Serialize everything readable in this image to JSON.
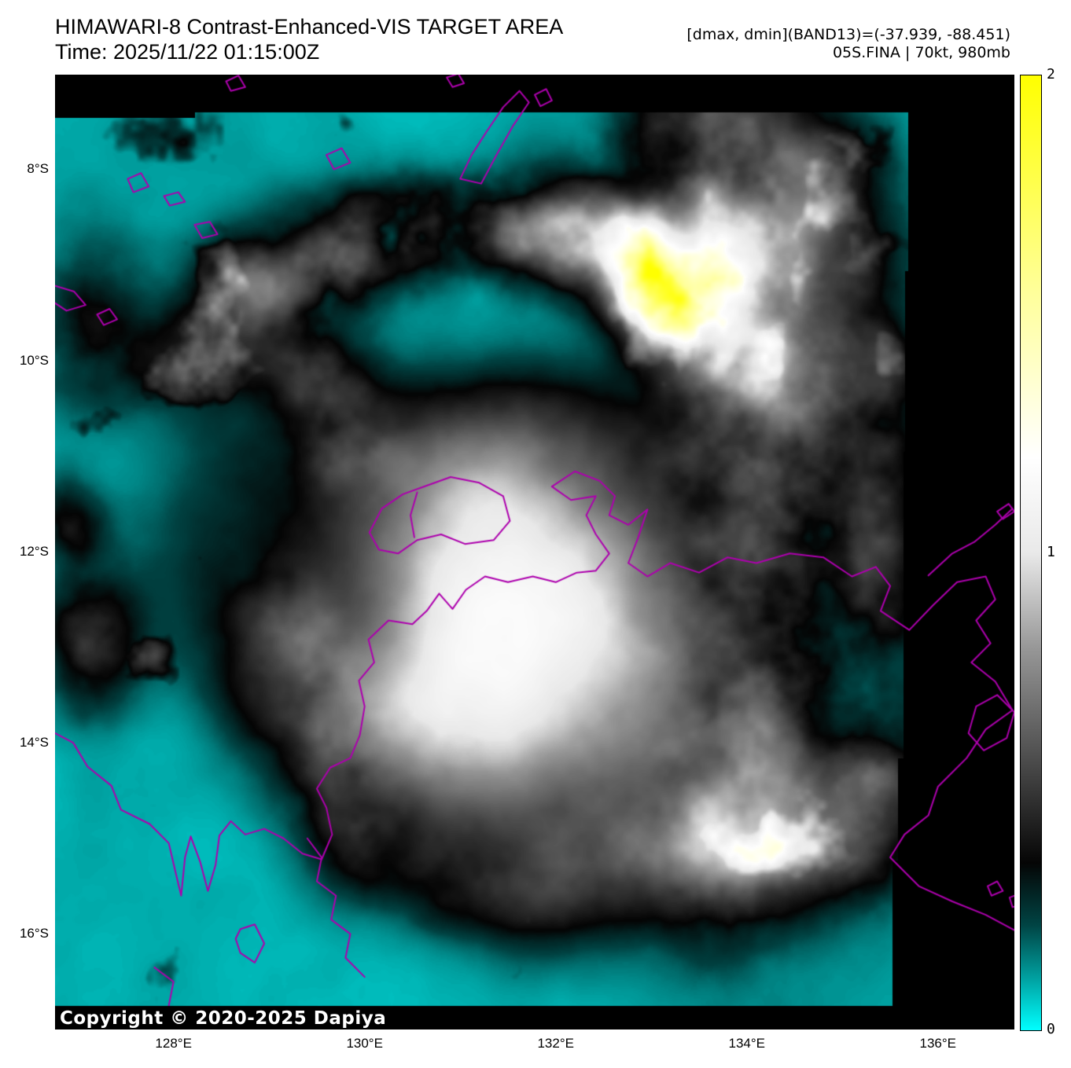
{
  "header": {
    "title": "HIMAWARI-8 Contrast-Enhanced-VIS TARGET AREA",
    "time_label": "Time: 2025/11/22 01:15:00Z",
    "band_stats": "[dmax, dmin](BAND13)=(-37.939, -88.451)",
    "storm_info": "05S.FINA | 70kt, 980mb"
  },
  "axes": {
    "x_ticks": [
      {
        "label": "128°E",
        "lon": 128
      },
      {
        "label": "130°E",
        "lon": 130
      },
      {
        "label": "132°E",
        "lon": 132
      },
      {
        "label": "134°E",
        "lon": 134
      },
      {
        "label": "136°E",
        "lon": 136
      }
    ],
    "y_ticks": [
      {
        "label": "8°S",
        "lat": -8
      },
      {
        "label": "10°S",
        "lat": -10
      },
      {
        "label": "12°S",
        "lat": -12
      },
      {
        "label": "14°S",
        "lat": -14
      },
      {
        "label": "16°S",
        "lat": -16
      }
    ]
  },
  "colorbar": {
    "min": 0,
    "max": 2,
    "ticks": [
      {
        "label": "2",
        "value": 2
      },
      {
        "label": "1",
        "value": 1
      },
      {
        "label": "0",
        "value": 0
      }
    ]
  },
  "map": {
    "copyright": "Copyright © 2020-2025 Dapiya",
    "coastline_color": "#ad00ad",
    "ocean_color": "#00e5e5",
    "view": {
      "lon_min": 126.76,
      "lon_max": 136.8,
      "lat_min": -17.0,
      "lat_max": -7.01
    },
    "colormap": [
      {
        "v": 0.0,
        "c": "#00ffff"
      },
      {
        "v": 0.1,
        "c": "#00a8a8"
      },
      {
        "v": 0.22,
        "c": "#004444"
      },
      {
        "v": 0.35,
        "c": "#050505"
      },
      {
        "v": 0.55,
        "c": "#474747"
      },
      {
        "v": 0.8,
        "c": "#979797"
      },
      {
        "v": 1.0,
        "c": "#e9e9e9"
      },
      {
        "v": 1.2,
        "c": "#ffffff"
      },
      {
        "v": 1.55,
        "c": "#ffff99"
      },
      {
        "v": 2.0,
        "c": "#ffff00"
      }
    ],
    "cyclone": {
      "u": 0.467,
      "v": 0.586,
      "core_radius": 0.21,
      "amp": 1.28,
      "arm_r": 0.27,
      "arm_width": 0.05,
      "arm_angle": 1.8,
      "arm_spread": 1.1,
      "arm_amp": 0.45
    },
    "cloud_blobs": [
      [
        0.245,
        0.215,
        0.075,
        0.05,
        0.95
      ],
      [
        0.34,
        0.17,
        0.08,
        0.05,
        1.0
      ],
      [
        0.455,
        0.155,
        0.085,
        0.05,
        1.0
      ],
      [
        0.565,
        0.175,
        0.08,
        0.055,
        1.05
      ],
      [
        0.65,
        0.23,
        0.07,
        0.06,
        0.95
      ],
      [
        0.715,
        0.305,
        0.06,
        0.065,
        0.8
      ],
      [
        0.68,
        0.18,
        0.08,
        0.07,
        0.7
      ],
      [
        0.73,
        0.4,
        0.1,
        0.09,
        0.7
      ],
      [
        0.755,
        0.54,
        0.09,
        0.11,
        0.68
      ],
      [
        0.74,
        0.7,
        0.085,
        0.1,
        0.65
      ],
      [
        0.705,
        0.83,
        0.08,
        0.09,
        0.6
      ],
      [
        0.72,
        0.1,
        0.12,
        0.08,
        0.6
      ],
      [
        0.78,
        0.22,
        0.1,
        0.1,
        0.55
      ],
      [
        0.68,
        0.05,
        0.1,
        0.05,
        0.5
      ],
      [
        0.84,
        0.33,
        0.07,
        0.08,
        0.45
      ],
      [
        0.86,
        0.5,
        0.04,
        0.12,
        0.45
      ],
      [
        0.86,
        0.75,
        0.04,
        0.1,
        0.4
      ],
      [
        0.275,
        0.315,
        0.05,
        0.05,
        0.5
      ],
      [
        0.305,
        0.375,
        0.05,
        0.06,
        0.55
      ],
      [
        0.035,
        0.59,
        0.05,
        0.075,
        0.55
      ],
      [
        0.015,
        0.465,
        0.035,
        0.045,
        0.4
      ],
      [
        0.24,
        0.575,
        0.045,
        0.06,
        0.4
      ],
      [
        0.275,
        0.665,
        0.04,
        0.075,
        0.42
      ],
      [
        0.305,
        0.76,
        0.045,
        0.075,
        0.4
      ],
      [
        0.07,
        0.3,
        0.11,
        0.055,
        0.25
      ],
      [
        0.18,
        0.27,
        0.09,
        0.05,
        0.22
      ],
      [
        0.03,
        0.23,
        0.06,
        0.08,
        0.28
      ],
      [
        0.8,
        0.815,
        0.1,
        0.06,
        0.35
      ],
      [
        0.885,
        0.735,
        0.07,
        0.06,
        0.32
      ]
    ],
    "coastlines": [
      {
        "name": "australia-mainland",
        "pts": [
          [
            126.76,
            -13.9
          ],
          [
            126.95,
            -14.0
          ],
          [
            127.1,
            -14.25
          ],
          [
            127.35,
            -14.45
          ],
          [
            127.45,
            -14.7
          ],
          [
            127.75,
            -14.85
          ],
          [
            127.95,
            -15.05
          ],
          [
            128.02,
            -15.35
          ],
          [
            128.08,
            -15.6
          ],
          [
            128.12,
            -15.2
          ],
          [
            128.18,
            -14.98
          ],
          [
            128.28,
            -15.25
          ],
          [
            128.36,
            -15.55
          ],
          [
            128.44,
            -15.28
          ],
          [
            128.48,
            -14.97
          ],
          [
            128.6,
            -14.82
          ],
          [
            128.75,
            -14.96
          ],
          [
            128.95,
            -14.9
          ],
          [
            129.15,
            -15.0
          ],
          [
            129.35,
            -15.16
          ],
          [
            129.55,
            -15.22
          ],
          [
            129.66,
            -14.96
          ],
          [
            129.6,
            -14.68
          ],
          [
            129.5,
            -14.48
          ],
          [
            129.64,
            -14.26
          ],
          [
            129.85,
            -14.16
          ],
          [
            129.95,
            -13.92
          ],
          [
            130.0,
            -13.62
          ],
          [
            129.94,
            -13.35
          ],
          [
            130.1,
            -13.16
          ],
          [
            130.04,
            -12.92
          ],
          [
            130.25,
            -12.72
          ],
          [
            130.5,
            -12.76
          ],
          [
            130.65,
            -12.62
          ],
          [
            130.78,
            -12.44
          ],
          [
            130.92,
            -12.6
          ],
          [
            131.06,
            -12.4
          ],
          [
            131.26,
            -12.26
          ],
          [
            131.5,
            -12.32
          ],
          [
            131.76,
            -12.26
          ],
          [
            132.0,
            -12.32
          ],
          [
            132.22,
            -12.22
          ],
          [
            132.42,
            -12.2
          ],
          [
            132.56,
            -12.02
          ],
          [
            132.42,
            -11.82
          ],
          [
            132.32,
            -11.62
          ],
          [
            132.42,
            -11.42
          ],
          [
            132.16,
            -11.46
          ],
          [
            131.96,
            -11.32
          ],
          [
            132.2,
            -11.16
          ],
          [
            132.46,
            -11.26
          ],
          [
            132.62,
            -11.42
          ],
          [
            132.56,
            -11.62
          ],
          [
            132.76,
            -11.72
          ],
          [
            132.96,
            -11.56
          ],
          [
            132.86,
            -11.86
          ],
          [
            132.76,
            -12.12
          ],
          [
            132.96,
            -12.26
          ],
          [
            133.2,
            -12.12
          ],
          [
            133.5,
            -12.22
          ],
          [
            133.8,
            -12.06
          ],
          [
            134.1,
            -12.12
          ],
          [
            134.45,
            -12.02
          ],
          [
            134.8,
            -12.06
          ],
          [
            135.1,
            -12.26
          ],
          [
            135.35,
            -12.16
          ],
          [
            135.5,
            -12.36
          ],
          [
            135.4,
            -12.62
          ],
          [
            135.7,
            -12.82
          ],
          [
            135.95,
            -12.56
          ],
          [
            136.2,
            -12.32
          ],
          [
            136.5,
            -12.26
          ],
          [
            136.6,
            -12.5
          ],
          [
            136.4,
            -12.72
          ],
          [
            136.55,
            -12.96
          ],
          [
            136.35,
            -13.16
          ],
          [
            136.6,
            -13.36
          ],
          [
            136.78,
            -13.66
          ],
          [
            136.5,
            -13.86
          ],
          [
            136.3,
            -14.16
          ],
          [
            136.0,
            -14.46
          ],
          [
            135.9,
            -14.76
          ],
          [
            135.65,
            -14.96
          ],
          [
            135.5,
            -15.2
          ],
          [
            135.8,
            -15.5
          ],
          [
            136.15,
            -15.66
          ],
          [
            136.5,
            -15.8
          ],
          [
            136.8,
            -15.96
          ]
        ]
      },
      {
        "name": "tiwi-islands",
        "pts": [
          [
            130.05,
            -11.8
          ],
          [
            130.18,
            -11.55
          ],
          [
            130.4,
            -11.4
          ],
          [
            130.62,
            -11.32
          ],
          [
            130.9,
            -11.22
          ],
          [
            131.2,
            -11.28
          ],
          [
            131.45,
            -11.42
          ],
          [
            131.52,
            -11.68
          ],
          [
            131.35,
            -11.88
          ],
          [
            131.05,
            -11.92
          ],
          [
            130.8,
            -11.82
          ],
          [
            130.55,
            -11.88
          ],
          [
            130.35,
            -12.02
          ],
          [
            130.15,
            -11.98
          ],
          [
            130.05,
            -11.8
          ]
        ]
      },
      {
        "name": "apsley-strait",
        "pts": [
          [
            130.55,
            -11.38
          ],
          [
            130.48,
            -11.62
          ],
          [
            130.52,
            -11.85
          ]
        ]
      },
      {
        "name": "tanimbar-islands",
        "pts": [
          [
            131.0,
            -8.1
          ],
          [
            131.12,
            -7.85
          ],
          [
            131.28,
            -7.6
          ],
          [
            131.45,
            -7.35
          ],
          [
            131.62,
            -7.18
          ],
          [
            131.72,
            -7.3
          ],
          [
            131.55,
            -7.55
          ],
          [
            131.38,
            -7.85
          ],
          [
            131.22,
            -8.15
          ],
          [
            131.0,
            -8.1
          ]
        ]
      },
      {
        "name": "tanimbar-islet",
        "pts": [
          [
            131.78,
            -7.22
          ],
          [
            131.9,
            -7.16
          ],
          [
            131.96,
            -7.28
          ],
          [
            131.84,
            -7.34
          ],
          [
            131.78,
            -7.22
          ]
        ]
      },
      {
        "name": "north-islet",
        "pts": [
          [
            130.86,
            -7.04
          ],
          [
            130.98,
            -7.0
          ],
          [
            131.04,
            -7.1
          ],
          [
            130.92,
            -7.14
          ],
          [
            130.86,
            -7.04
          ]
        ]
      },
      {
        "name": "damar-islet",
        "pts": [
          [
            128.55,
            -7.08
          ],
          [
            128.68,
            -7.02
          ],
          [
            128.75,
            -7.14
          ],
          [
            128.6,
            -7.18
          ],
          [
            128.55,
            -7.08
          ]
        ]
      },
      {
        "name": "babar-island",
        "pts": [
          [
            129.6,
            -7.85
          ],
          [
            129.76,
            -7.78
          ],
          [
            129.85,
            -7.93
          ],
          [
            129.68,
            -8.0
          ],
          [
            129.6,
            -7.85
          ]
        ]
      },
      {
        "name": "leti-island",
        "pts": [
          [
            126.76,
            -9.22
          ],
          [
            126.96,
            -9.28
          ],
          [
            127.08,
            -9.42
          ],
          [
            126.88,
            -9.48
          ],
          [
            126.76,
            -9.4
          ]
        ]
      },
      {
        "name": "moa-island",
        "pts": [
          [
            127.2,
            -9.52
          ],
          [
            127.33,
            -9.46
          ],
          [
            127.41,
            -9.57
          ],
          [
            127.27,
            -9.63
          ],
          [
            127.2,
            -9.52
          ]
        ]
      },
      {
        "name": "sermata-island",
        "pts": [
          [
            127.52,
            -8.1
          ],
          [
            127.66,
            -8.04
          ],
          [
            127.74,
            -8.18
          ],
          [
            127.58,
            -8.24
          ],
          [
            127.52,
            -8.1
          ]
        ]
      },
      {
        "name": "small-islet-a",
        "pts": [
          [
            127.9,
            -8.28
          ],
          [
            128.05,
            -8.24
          ],
          [
            128.12,
            -8.34
          ],
          [
            127.96,
            -8.38
          ],
          [
            127.9,
            -8.28
          ]
        ]
      },
      {
        "name": "small-islet-b",
        "pts": [
          [
            128.22,
            -8.58
          ],
          [
            128.38,
            -8.55
          ],
          [
            128.46,
            -8.68
          ],
          [
            128.3,
            -8.72
          ],
          [
            128.22,
            -8.58
          ]
        ]
      },
      {
        "name": "wessel-islands",
        "pts": [
          [
            136.78,
            -11.55
          ],
          [
            136.6,
            -11.72
          ],
          [
            136.38,
            -11.9
          ],
          [
            136.15,
            -12.02
          ],
          [
            135.9,
            -12.25
          ]
        ]
      },
      {
        "name": "wessel-islet",
        "pts": [
          [
            136.62,
            -11.58
          ],
          [
            136.74,
            -11.5
          ],
          [
            136.8,
            -11.58
          ],
          [
            136.68,
            -11.66
          ],
          [
            136.62,
            -11.58
          ]
        ]
      },
      {
        "name": "groote-eylandt",
        "pts": [
          [
            136.4,
            -13.62
          ],
          [
            136.62,
            -13.5
          ],
          [
            136.8,
            -13.68
          ],
          [
            136.72,
            -13.95
          ],
          [
            136.48,
            -14.08
          ],
          [
            136.32,
            -13.9
          ],
          [
            136.4,
            -13.62
          ]
        ]
      },
      {
        "name": "pellew-islet-a",
        "pts": [
          [
            136.52,
            -15.5
          ],
          [
            136.62,
            -15.45
          ],
          [
            136.68,
            -15.55
          ],
          [
            136.56,
            -15.6
          ],
          [
            136.52,
            -15.5
          ]
        ]
      },
      {
        "name": "pellew-islet-b",
        "pts": [
          [
            136.75,
            -15.62
          ],
          [
            136.85,
            -15.58
          ],
          [
            136.9,
            -15.68
          ],
          [
            136.78,
            -15.72
          ],
          [
            136.75,
            -15.62
          ]
        ]
      },
      {
        "name": "victoria-river",
        "pts": [
          [
            129.4,
            -15.0
          ],
          [
            129.55,
            -15.2
          ],
          [
            129.5,
            -15.45
          ],
          [
            129.7,
            -15.6
          ],
          [
            129.65,
            -15.85
          ],
          [
            129.85,
            -16.0
          ],
          [
            129.8,
            -16.25
          ],
          [
            130.0,
            -16.45
          ]
        ]
      },
      {
        "name": "lake-argyle",
        "pts": [
          [
            128.7,
            -15.95
          ],
          [
            128.85,
            -15.9
          ],
          [
            128.95,
            -16.1
          ],
          [
            128.85,
            -16.3
          ],
          [
            128.7,
            -16.2
          ],
          [
            128.65,
            -16.05
          ],
          [
            128.7,
            -15.95
          ]
        ]
      },
      {
        "name": "ord-river",
        "pts": [
          [
            127.8,
            -16.35
          ],
          [
            128.0,
            -16.5
          ],
          [
            127.95,
            -16.75
          ],
          [
            128.15,
            -16.95
          ]
        ]
      }
    ]
  }
}
